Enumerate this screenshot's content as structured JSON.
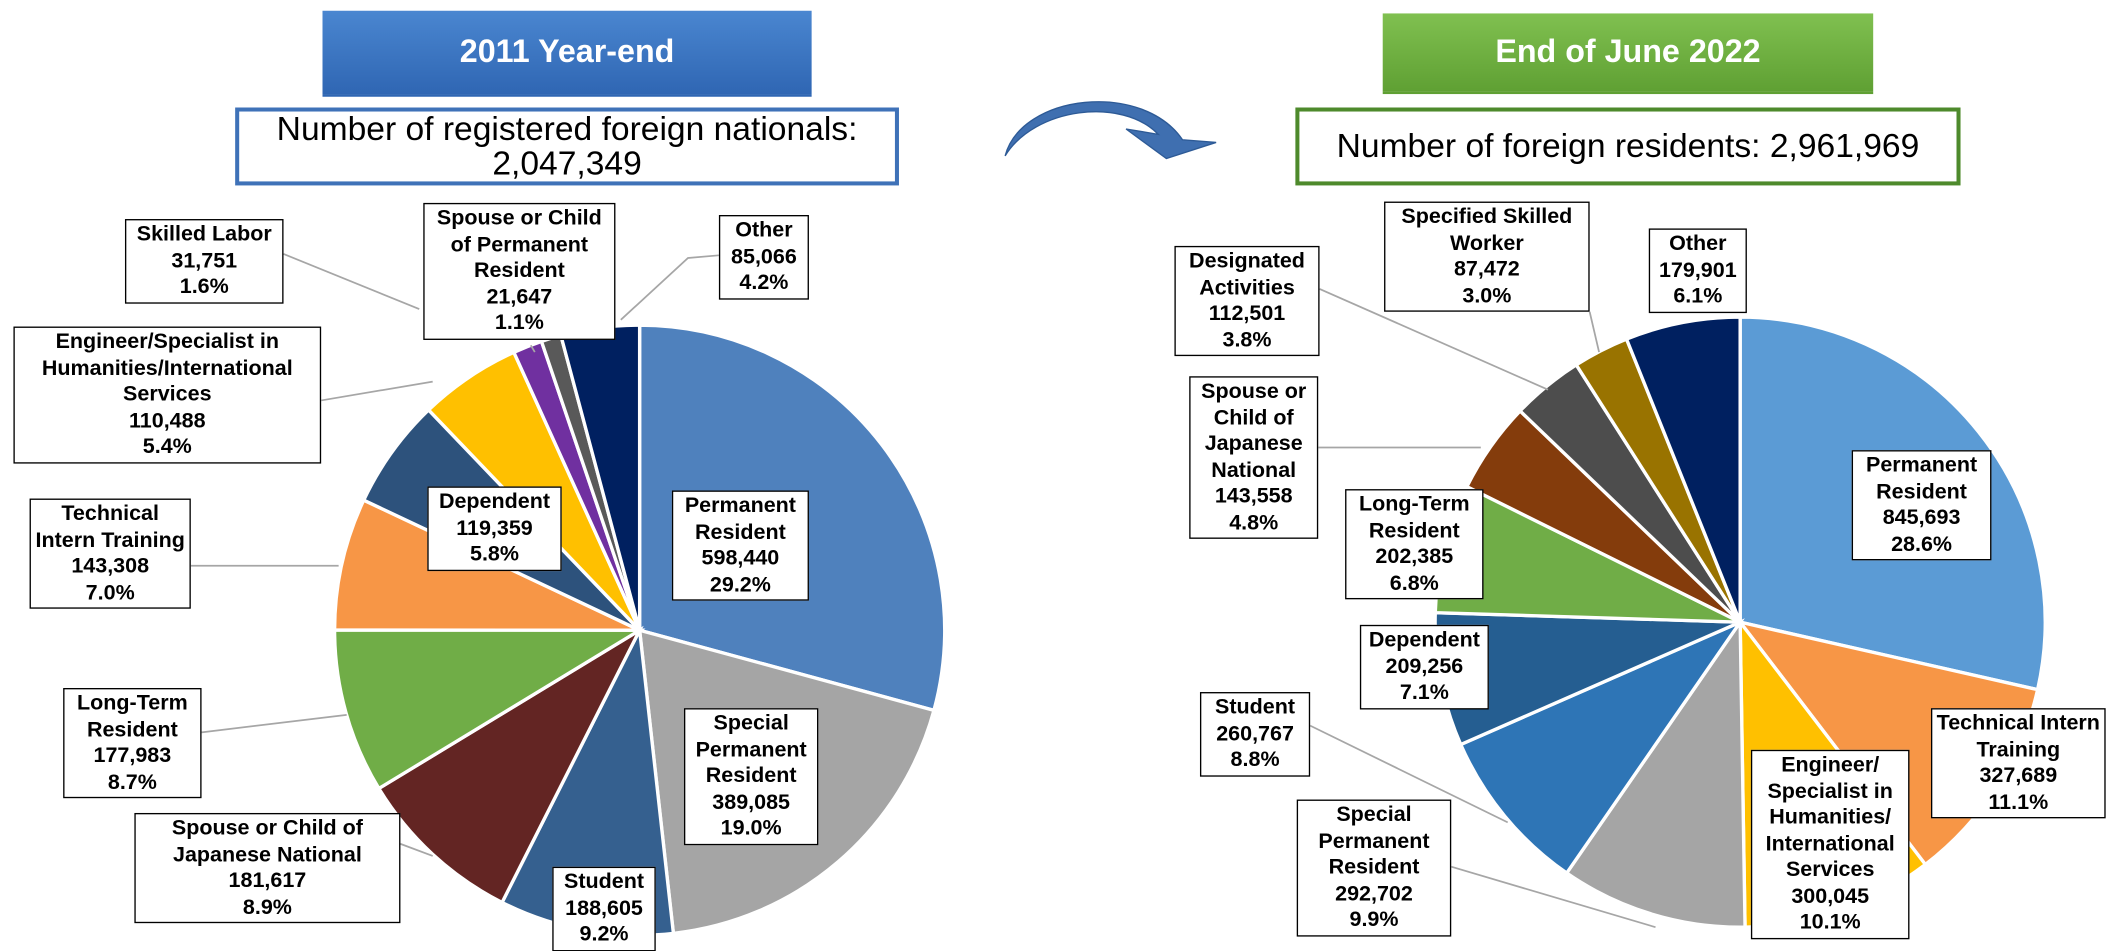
{
  "chart_data": [
    {
      "type": "pie",
      "title": "2011 Year-end",
      "subtitle": [
        "Number of registered foreign nationals:",
        "2,047,349"
      ],
      "categories": [
        "Permanent Resident",
        "Special Permanent Resident",
        "Student",
        "Spouse or Child of Japanese National",
        "Long-Term Resident",
        "Technical Intern Training",
        "Dependent",
        "Engineer/Specialist in Humanities/International Services",
        "Skilled Labor",
        "Spouse or Child of Permanent Resident",
        "Other"
      ],
      "values": [
        598440,
        389085,
        188605,
        181617,
        177983,
        143308,
        119359,
        110488,
        31751,
        21647,
        85066
      ],
      "value_labels": [
        "598,440",
        "389,085",
        "188,605",
        "181,617",
        "177,983",
        "143,308",
        "119,359",
        "110,488",
        "31,751",
        "21,647",
        "85,066"
      ],
      "percent_labels": [
        "29.2%",
        "19.0%",
        "9.2%",
        "8.9%",
        "8.7%",
        "7.0%",
        "5.8%",
        "5.4%",
        "1.6%",
        "1.1%",
        "4.2%"
      ],
      "colors": [
        "#4f81bd",
        "#a5a5a5",
        "#35608f",
        "#632523",
        "#70ad47",
        "#f79646",
        "#2d527c",
        "#ffc000",
        "#7030a0",
        "#595959",
        "#002060"
      ]
    },
    {
      "type": "pie",
      "title": "End of June 2022",
      "subtitle": [
        "Number of foreign residents: 2,961,969"
      ],
      "categories": [
        "Permanent Resident",
        "Technical Intern Training",
        "Engineer/ Specialist in Humanities/ International Services",
        "Special Permanent Resident",
        "Student",
        "Dependent",
        "Long-Term Resident",
        "Spouse or Child of Japanese National",
        "Designated Activities",
        "Specified Skilled Worker",
        "Other"
      ],
      "values": [
        845693,
        327689,
        300045,
        292702,
        260767,
        209256,
        202385,
        143558,
        112501,
        87472,
        179901
      ],
      "value_labels": [
        "845,693",
        "327,689",
        "300,045",
        "292,702",
        "260,767",
        "209,256",
        "202,385",
        "143,558",
        "112,501",
        "87,472",
        "179,901"
      ],
      "percent_labels": [
        "28.6%",
        "11.1%",
        "10.1%",
        "9.9%",
        "8.8%",
        "7.1%",
        "6.8%",
        "4.8%",
        "3.8%",
        "3.0%",
        "6.1%"
      ],
      "colors": [
        "#5b9bd5",
        "#f79646",
        "#ffc000",
        "#a5a5a5",
        "#2e75b6",
        "#255e91",
        "#70ad47",
        "#843c0c",
        "#4d4d4d",
        "#997300",
        "#002060"
      ]
    }
  ]
}
